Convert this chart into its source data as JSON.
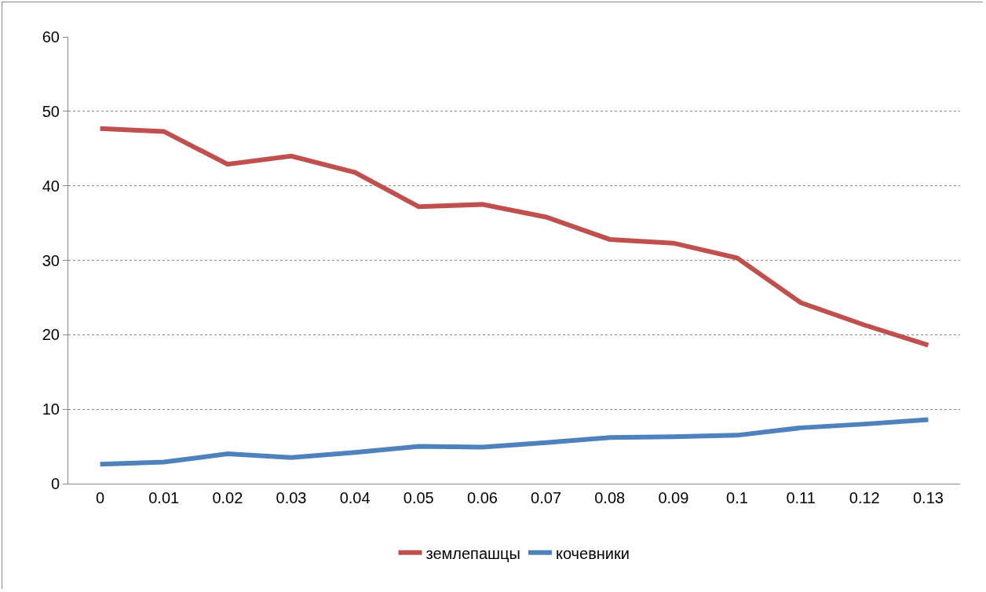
{
  "chart_data": {
    "type": "line",
    "categories": [
      "0",
      "0.01",
      "0.02",
      "0.03",
      "0.04",
      "0.05",
      "0.06",
      "0.07",
      "0.08",
      "0.09",
      "0.1",
      "0.11",
      "0.12",
      "0.13"
    ],
    "series": [
      {
        "name": "землепашцы",
        "color": "#c0504d",
        "values": [
          47.7,
          47.3,
          42.9,
          44.0,
          41.8,
          37.2,
          37.5,
          35.8,
          32.8,
          32.3,
          30.3,
          24.3,
          21.3,
          18.6
        ]
      },
      {
        "name": "кочевники",
        "color": "#4f81bd",
        "values": [
          2.6,
          2.9,
          4.0,
          3.5,
          4.2,
          5.0,
          4.9,
          5.5,
          6.2,
          6.3,
          6.5,
          7.5,
          8.0,
          8.6
        ]
      }
    ],
    "ylim": [
      0,
      60
    ],
    "yticks": [
      0,
      10,
      20,
      30,
      40,
      50,
      60
    ],
    "grid": "y",
    "legend": "bottom",
    "marker": "none",
    "line_style": "solid"
  }
}
